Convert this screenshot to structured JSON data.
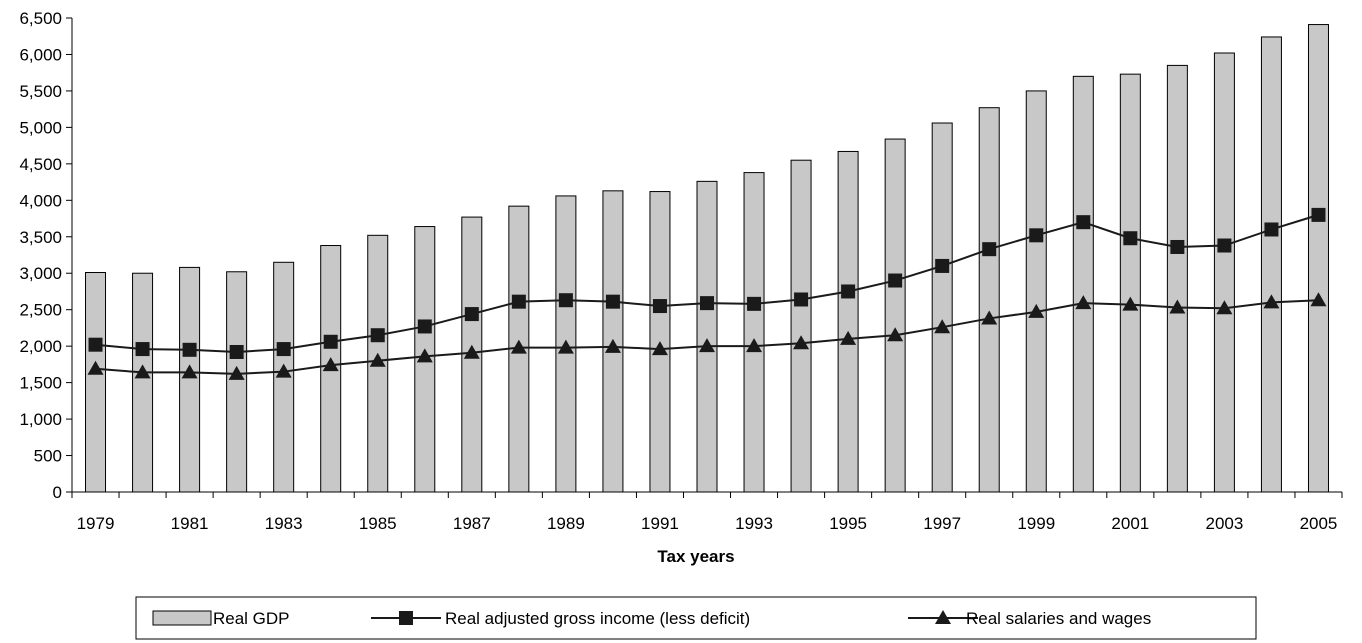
{
  "chart_data": {
    "type": "bar",
    "xlabel": "Tax years",
    "ylabel": "",
    "title": "",
    "ylim": [
      0,
      6500
    ],
    "yticks": [
      0,
      500,
      1000,
      1500,
      2000,
      2500,
      3000,
      3500,
      4000,
      4500,
      5000,
      5500,
      6000,
      6500
    ],
    "ytick_labels": [
      "0",
      "500",
      "1,000",
      "1,500",
      "2,000",
      "2,500",
      "3,000",
      "3,500",
      "4,000",
      "4,500",
      "5,000",
      "5,500",
      "6,000",
      "6,500"
    ],
    "categories": [
      "1979",
      "1980",
      "1981",
      "1982",
      "1983",
      "1984",
      "1985",
      "1986",
      "1987",
      "1988",
      "1989",
      "1990",
      "1991",
      "1992",
      "1993",
      "1994",
      "1995",
      "1996",
      "1997",
      "1998",
      "1999",
      "2000",
      "2001",
      "2002",
      "2003",
      "2004",
      "2005"
    ],
    "xtick_labels": [
      "1979",
      "",
      "1981",
      "",
      "1983",
      "",
      "1985",
      "",
      "1987",
      "",
      "1989",
      "",
      "1991",
      "",
      "1993",
      "",
      "1995",
      "",
      "1997",
      "",
      "1999",
      "",
      "2001",
      "",
      "2003",
      "",
      "2005"
    ],
    "grid": false,
    "legend_position": "bottom",
    "series": [
      {
        "name": "Real GDP",
        "kind": "bar",
        "color": "#c8c8c8",
        "values": [
          3010,
          3000,
          3080,
          3020,
          3150,
          3380,
          3520,
          3640,
          3770,
          3920,
          4060,
          4130,
          4120,
          4260,
          4380,
          4550,
          4670,
          4840,
          5060,
          5270,
          5500,
          5700,
          5730,
          5850,
          6020,
          6240,
          6410
        ]
      },
      {
        "name": "Real adjusted gross income (less deficit)",
        "kind": "line",
        "marker": "square",
        "color": "#1a1a1a",
        "values": [
          2020,
          1960,
          1950,
          1920,
          1960,
          2060,
          2150,
          2270,
          2440,
          2610,
          2630,
          2610,
          2550,
          2590,
          2580,
          2640,
          2750,
          2900,
          3100,
          3330,
          3520,
          3700,
          3480,
          3360,
          3380,
          3600,
          3800
        ]
      },
      {
        "name": "Real salaries and wages",
        "kind": "line",
        "marker": "triangle",
        "color": "#1a1a1a",
        "values": [
          1690,
          1640,
          1640,
          1620,
          1650,
          1740,
          1800,
          1860,
          1910,
          1980,
          1980,
          1990,
          1960,
          2000,
          2000,
          2040,
          2100,
          2150,
          2260,
          2380,
          2470,
          2590,
          2570,
          2530,
          2520,
          2600,
          2630
        ]
      }
    ]
  }
}
